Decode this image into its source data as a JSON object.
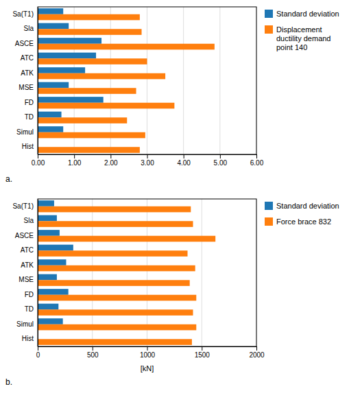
{
  "chart_data": [
    {
      "type": "bar",
      "orientation": "horizontal",
      "categories": [
        "Sa(T1)",
        "Sla",
        "ASCE",
        "ATC",
        "ATK",
        "MSE",
        "FD",
        "TD",
        "Simul",
        "Hist"
      ],
      "series": [
        {
          "name": "Standard deviation",
          "values": [
            0.7,
            0.85,
            1.75,
            1.6,
            1.3,
            0.85,
            1.8,
            0.65,
            0.7,
            0.0
          ]
        },
        {
          "name": "Displacement\nductility demand\npoint 140",
          "values": [
            2.8,
            2.85,
            4.85,
            3.0,
            3.5,
            2.7,
            3.75,
            2.45,
            2.95,
            2.8
          ]
        }
      ],
      "xlim": [
        0,
        6.0
      ],
      "xticks": [
        {
          "value": 0.0,
          "label": "0.00"
        },
        {
          "value": 1.0,
          "label": "1.00"
        },
        {
          "value": 2.0,
          "label": "2.00"
        },
        {
          "value": 3.0,
          "label": "3.00"
        },
        {
          "value": 4.0,
          "label": "4.00"
        },
        {
          "value": 5.0,
          "label": "5.00"
        },
        {
          "value": 6.0,
          "label": "6.00"
        }
      ],
      "grid": true,
      "legend": "right",
      "annotations": [
        "a."
      ]
    },
    {
      "type": "bar",
      "orientation": "horizontal",
      "categories": [
        "Sa(T1)",
        "Sla",
        "ASCE",
        "ATC",
        "ATK",
        "MSE",
        "FD",
        "TD",
        "Simul",
        "Hist"
      ],
      "series": [
        {
          "name": "Standard deviation",
          "values": [
            150,
            175,
            200,
            325,
            260,
            175,
            280,
            190,
            230,
            0
          ]
        },
        {
          "name": "Force brace 832",
          "values": [
            1400,
            1420,
            1625,
            1370,
            1440,
            1390,
            1450,
            1420,
            1450,
            1410
          ]
        }
      ],
      "xlim": [
        0,
        2000
      ],
      "xticks": [
        0,
        500,
        1000,
        1500,
        2000
      ],
      "xlabel": "[kN]",
      "grid": true,
      "legend": "right",
      "annotations": [
        "b."
      ]
    }
  ]
}
